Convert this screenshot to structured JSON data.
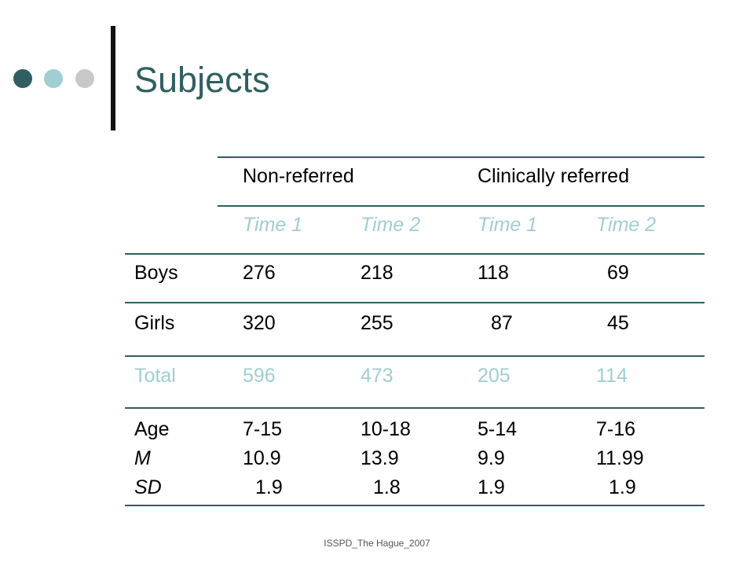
{
  "slide": {
    "title": "Subjects",
    "footer": "ISSPD_The Hague_2007",
    "colors": {
      "accent": "#2f5f61",
      "light_teal": "#9fced3",
      "gray": "#c8c8c8"
    }
  },
  "table": {
    "groups": [
      "Non-referred",
      "Clinically referred"
    ],
    "times": [
      "Time 1",
      "Time 2",
      "Time 1",
      "Time 2"
    ],
    "rows": [
      {
        "label": "Boys",
        "values": [
          "276",
          "218",
          "118",
          "69"
        ]
      },
      {
        "label": "Girls",
        "values": [
          "320",
          "255",
          "87",
          "45"
        ]
      },
      {
        "label": "Total",
        "values": [
          "596",
          "473",
          "205",
          "114"
        ]
      }
    ],
    "age_block": {
      "labels": [
        "Age",
        "M",
        "SD"
      ],
      "columns": [
        [
          "7-15",
          "10.9",
          "1.9"
        ],
        [
          "10-18",
          "13.9",
          "1.8"
        ],
        [
          "5-14",
          "9.9",
          "1.9"
        ],
        [
          "7-16",
          "11.99",
          "1.9"
        ]
      ]
    }
  }
}
